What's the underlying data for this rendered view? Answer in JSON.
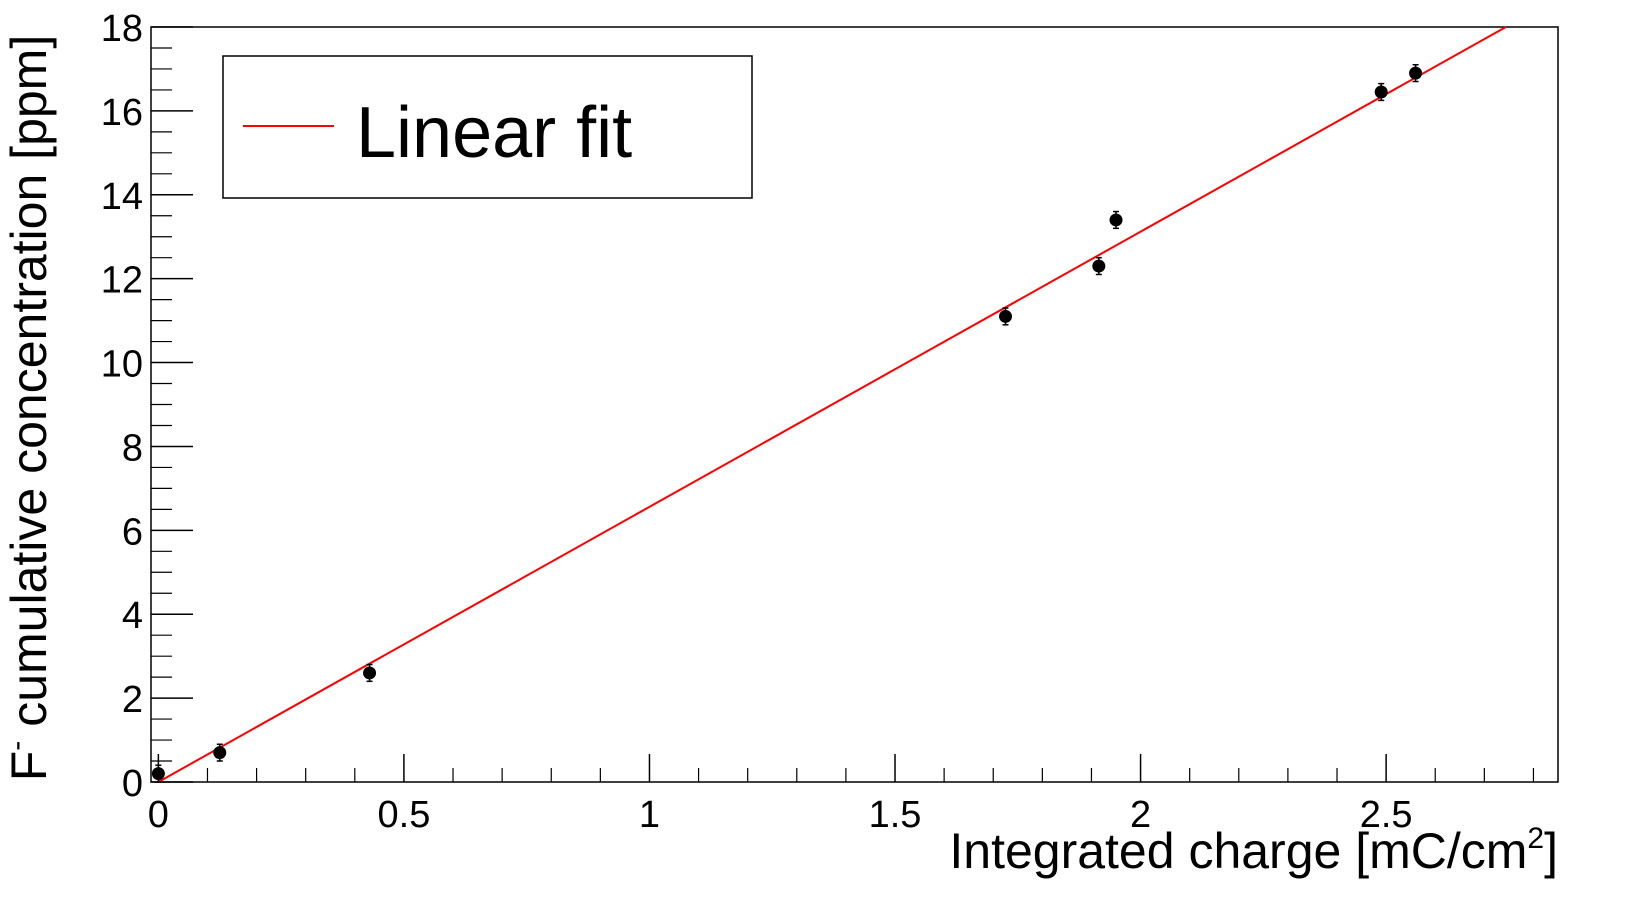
{
  "chart_data": {
    "type": "scatter",
    "title": "",
    "xlabel": "Integrated charge [mC/cm",
    "xlabel_sup": "2",
    "xlabel_end": "]",
    "ylabel_prefix": "F",
    "ylabel_sup": "-",
    "ylabel": " cumulative concentration [ppm]",
    "xlim": [
      -0.015,
      2.85
    ],
    "ylim": [
      0,
      18
    ],
    "x_ticks": [
      0,
      0.5,
      1,
      1.5,
      2,
      2.5
    ],
    "x_tick_labels": [
      "0",
      "0.5",
      "1",
      "1.5",
      "2",
      "2.5"
    ],
    "y_ticks": [
      0,
      2,
      4,
      6,
      8,
      10,
      12,
      14,
      16,
      18
    ],
    "y_tick_labels": [
      "0",
      "2",
      "4",
      "6",
      "8",
      "10",
      "12",
      "14",
      "16",
      "18"
    ],
    "grid": false,
    "legend_position": "top-left",
    "series": [
      {
        "x": [
          0.0,
          0.125,
          0.43,
          1.725,
          1.915,
          1.95,
          2.49,
          2.56
        ],
        "y": [
          0.2,
          0.7,
          2.6,
          11.1,
          12.3,
          13.4,
          16.45,
          16.9
        ],
        "y_err": [
          0.2,
          0.2,
          0.2,
          0.2,
          0.2,
          0.2,
          0.2,
          0.2
        ],
        "color": "#000000"
      }
    ],
    "fit": {
      "name": "Linear fit",
      "type": "line",
      "slope": 6.56,
      "intercept": 0.0,
      "x_range": [
        0.0,
        2.85
      ],
      "color": "#ff0000"
    }
  }
}
